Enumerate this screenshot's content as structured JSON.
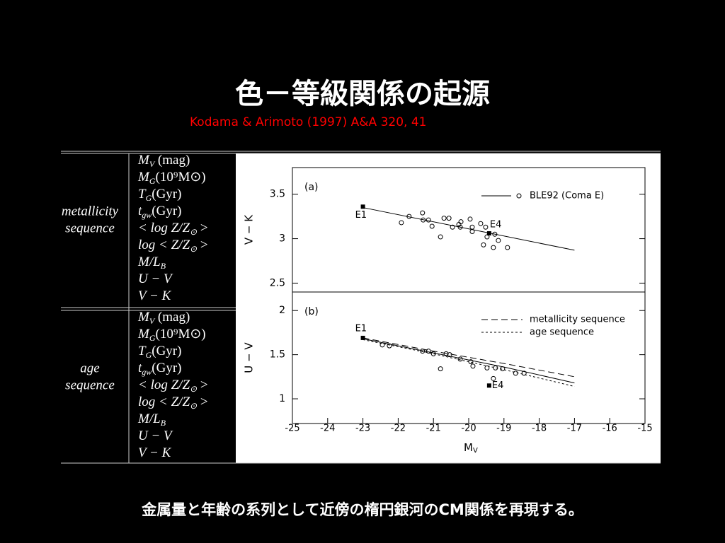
{
  "title": "色－等級関係の起源",
  "subtitle": "Kodama & Arimoto (1997) A&A 320, 41",
  "footer": "金属量と年齢の系列として近傍の楕円銀河のCM関係を再現する。",
  "table": {
    "groups": [
      {
        "label": [
          "metallicity",
          "sequence"
        ],
        "rows": [
          {
            "base": "M",
            "sub": "V",
            "tail": " (mag)"
          },
          {
            "base": "M",
            "sub": "G",
            "tail": "(10⁹M⊙)"
          },
          {
            "base": "T",
            "sub": "G",
            "tail": "(Gyr)"
          },
          {
            "base": "t",
            "sub": "gw",
            "tail": "(Gyr)"
          },
          {
            "base": "< log Z/Z",
            "sub": "⊙",
            "tail": " >"
          },
          {
            "base": "log < Z/Z",
            "sub": "⊙",
            "tail": " >"
          },
          {
            "base": "M/L",
            "sub": "B",
            "tail": ""
          },
          {
            "base": "U − V",
            "sub": "",
            "tail": ""
          },
          {
            "base": "V − K",
            "sub": "",
            "tail": ""
          }
        ]
      },
      {
        "label": [
          "age",
          "sequence"
        ],
        "rows": [
          {
            "base": "M",
            "sub": "V",
            "tail": " (mag)"
          },
          {
            "base": "M",
            "sub": "G",
            "tail": "(10⁹M⊙)"
          },
          {
            "base": "T",
            "sub": "G",
            "tail": "(Gyr)"
          },
          {
            "base": "t",
            "sub": "gw",
            "tail": "(Gyr)"
          },
          {
            "base": "< log Z/Z",
            "sub": "⊙",
            "tail": " >"
          },
          {
            "base": "log < Z/Z",
            "sub": "⊙",
            "tail": " >"
          },
          {
            "base": "M/L",
            "sub": "B",
            "tail": ""
          },
          {
            "base": "U − V",
            "sub": "",
            "tail": ""
          },
          {
            "base": "V − K",
            "sub": "",
            "tail": ""
          }
        ]
      }
    ]
  },
  "chart_data": [
    {
      "type": "scatter",
      "panel_label": "(a)",
      "ylabel": "V − K",
      "xlim": [
        -25,
        -15
      ],
      "ylim": [
        2.4,
        3.8
      ],
      "yticks": [
        2.5,
        3,
        3.5
      ],
      "series": [
        {
          "name": "BLE92 (Coma E)",
          "style": "markers",
          "x": [
            -21.91,
            -21.69,
            -21.31,
            -21.29,
            -21.14,
            -21.04,
            -20.8,
            -20.7,
            -20.56,
            -20.46,
            -20.28,
            -20.22,
            -20.24,
            -19.96,
            -19.9,
            -19.9,
            -19.66,
            -19.52,
            -19.48,
            -19.58,
            -19.3,
            -19.26,
            -19.16,
            -18.9
          ],
          "values": [
            3.18,
            3.25,
            3.29,
            3.21,
            3.21,
            3.14,
            3.02,
            3.23,
            3.23,
            3.13,
            3.16,
            3.19,
            3.13,
            3.22,
            3.13,
            3.08,
            3.17,
            3.13,
            3.02,
            2.93,
            2.9,
            3.05,
            2.98,
            2.9
          ]
        },
        {
          "style": "solid",
          "x": [
            -23,
            -17
          ],
          "values": [
            3.35,
            2.87
          ]
        }
      ],
      "labeled_points": [
        {
          "label": "E1",
          "x": -23,
          "y": 3.36
        },
        {
          "label": "E4",
          "x": -19.42,
          "y": 3.06
        }
      ]
    },
    {
      "type": "scatter",
      "panel_label": "(b)",
      "ylabel": "U − V",
      "xlabel": "M",
      "xlabel_sub": "V",
      "xlim": [
        -25,
        -15
      ],
      "ylim": [
        0.72,
        2.21
      ],
      "yticks": [
        1,
        1.5,
        2
      ],
      "xticks": [
        -25,
        -24,
        -23,
        -22,
        -21,
        -20,
        -19,
        -18,
        -17,
        -16,
        -15
      ],
      "series": [
        {
          "style": "markers",
          "x": [
            -22.45,
            -22.25,
            -21.31,
            -21.14,
            -21.0,
            -20.8,
            -20.64,
            -20.54,
            -20.24,
            -19.94,
            -19.88,
            -19.48,
            -19.24,
            -19.3,
            -19.04,
            -18.67,
            -18.43
          ],
          "values": [
            1.61,
            1.6,
            1.54,
            1.54,
            1.51,
            1.34,
            1.51,
            1.5,
            1.45,
            1.42,
            1.37,
            1.35,
            1.35,
            1.23,
            1.34,
            1.29,
            1.29
          ]
        },
        {
          "style": "solid",
          "x": [
            -23,
            -21,
            -19,
            -17
          ],
          "values": [
            1.68,
            1.52,
            1.36,
            1.18
          ]
        },
        {
          "name": "metallicity sequence",
          "style": "dashed",
          "x": [
            -23,
            -21,
            -19,
            -17
          ],
          "values": [
            1.69,
            1.54,
            1.4,
            1.25
          ]
        },
        {
          "name": "age sequence",
          "style": "dotted",
          "x": [
            -23,
            -21,
            -19,
            -17
          ],
          "values": [
            1.67,
            1.51,
            1.33,
            1.14
          ]
        }
      ],
      "labeled_points": [
        {
          "label": "E1",
          "x": -23,
          "y": 1.69
        },
        {
          "label": "E4",
          "x": -19.42,
          "y": 1.15
        }
      ]
    }
  ]
}
